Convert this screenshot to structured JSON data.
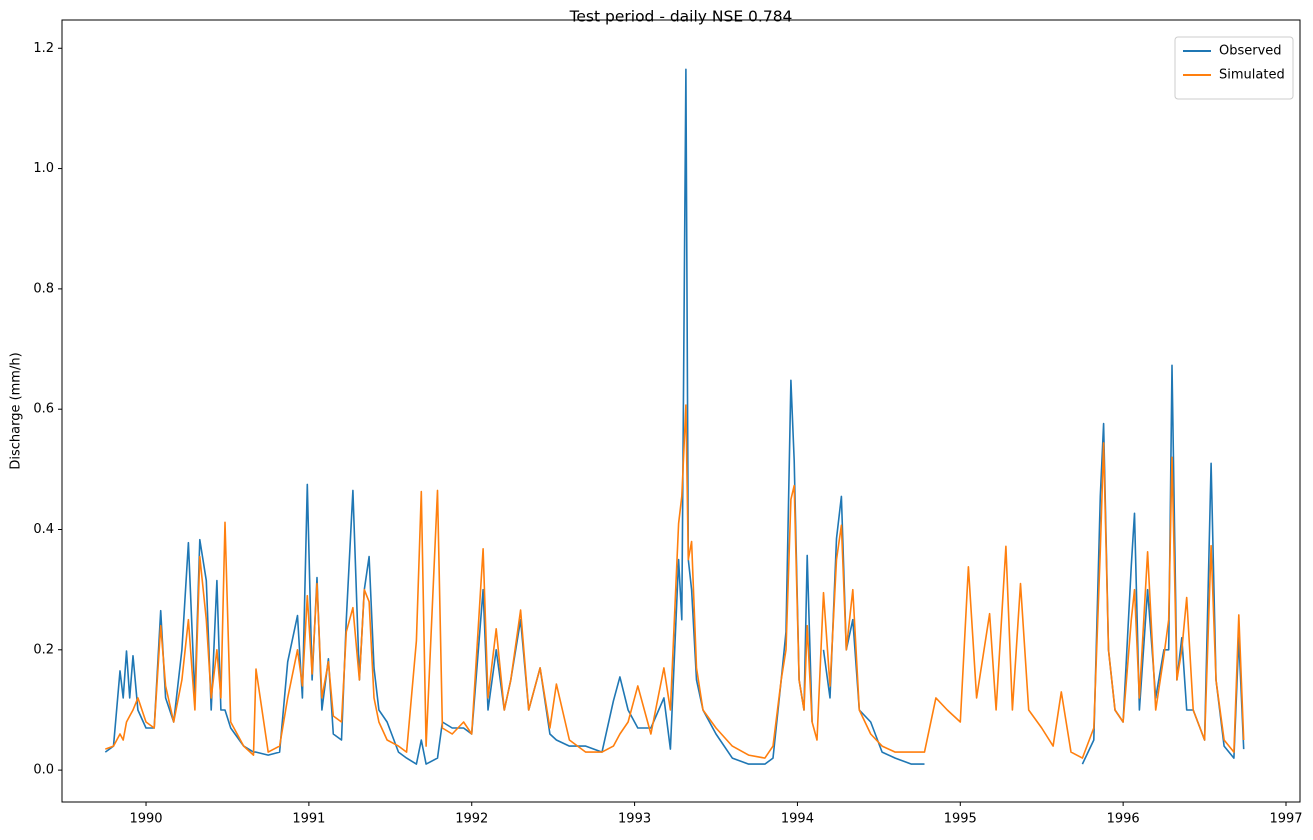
{
  "chart_data": {
    "type": "line",
    "title": "Test period - daily NSE 0.784",
    "ylabel": "Discharge (mm/h)",
    "x": [
      1989.75,
      1989.8,
      1989.84,
      1989.86,
      1989.88,
      1989.9,
      1989.92,
      1989.95,
      1990.0,
      1990.05,
      1990.09,
      1990.12,
      1990.17,
      1990.22,
      1990.26,
      1990.3,
      1990.33,
      1990.37,
      1990.4,
      1990.435,
      1990.46,
      1990.485,
      1990.52,
      1990.6,
      1990.66,
      1990.675,
      1990.75,
      1990.82,
      1990.87,
      1990.93,
      1990.96,
      1990.99,
      1991.02,
      1991.05,
      1991.08,
      1991.12,
      1991.15,
      1991.2,
      1991.23,
      1991.27,
      1991.31,
      1991.34,
      1991.37,
      1991.4,
      1991.43,
      1991.48,
      1991.55,
      1991.6,
      1991.66,
      1991.69,
      1991.72,
      1991.79,
      1991.82,
      1991.88,
      1991.95,
      1992.0,
      1992.07,
      1992.1,
      1992.15,
      1992.2,
      1992.24,
      1992.3,
      1992.35,
      1992.42,
      1992.48,
      1992.52,
      1992.6,
      1992.7,
      1992.8,
      1992.87,
      1992.91,
      1992.96,
      1993.02,
      1993.1,
      1993.18,
      1993.22,
      1993.27,
      1993.29,
      1993.315,
      1993.33,
      1993.35,
      1993.38,
      1993.42,
      1993.5,
      1993.6,
      1993.7,
      1993.8,
      1993.85,
      1993.9,
      1993.93,
      1993.96,
      1993.98,
      1994.01,
      1994.04,
      1994.06,
      1994.09,
      1994.12,
      1994.16,
      1994.2,
      1994.24,
      1994.27,
      1994.3,
      1994.34,
      1994.38,
      1994.45,
      1994.52,
      1994.6,
      1994.7,
      1994.78,
      1994.85,
      1994.92,
      1995.0,
      1995.05,
      1995.1,
      1995.18,
      1995.22,
      1995.28,
      1995.32,
      1995.37,
      1995.42,
      1995.5,
      1995.57,
      1995.62,
      1995.68,
      1995.75,
      1995.82,
      1995.86,
      1995.88,
      1995.91,
      1995.95,
      1996.0,
      1996.05,
      1996.07,
      1996.1,
      1996.15,
      1996.2,
      1996.25,
      1996.28,
      1996.3,
      1996.33,
      1996.36,
      1996.39,
      1996.43,
      1996.5,
      1996.54,
      1996.57,
      1996.62,
      1996.68,
      1996.71,
      1996.74
    ],
    "series": [
      {
        "name": "Observed",
        "color": "#1f77b4",
        "values": [
          0.03,
          0.04,
          0.165,
          0.12,
          0.198,
          0.12,
          0.19,
          0.1,
          0.07,
          0.07,
          0.265,
          0.12,
          0.08,
          0.2,
          0.378,
          0.12,
          0.383,
          0.315,
          0.1,
          0.315,
          0.1,
          0.1,
          0.07,
          0.04,
          0.03,
          0.03,
          0.025,
          0.03,
          0.18,
          0.257,
          0.12,
          0.475,
          0.15,
          0.32,
          0.1,
          0.185,
          0.06,
          0.05,
          0.25,
          0.465,
          0.15,
          0.3,
          0.355,
          0.17,
          0.1,
          0.08,
          0.03,
          0.02,
          0.01,
          0.05,
          0.01,
          0.02,
          0.08,
          0.07,
          0.07,
          0.06,
          0.3,
          0.1,
          0.2,
          0.1,
          0.15,
          0.25,
          0.1,
          0.17,
          0.06,
          0.05,
          0.04,
          0.04,
          0.03,
          0.115,
          0.155,
          0.1,
          0.07,
          0.07,
          0.12,
          0.035,
          0.35,
          0.25,
          1.165,
          0.35,
          0.3,
          0.15,
          0.1,
          0.06,
          0.02,
          0.01,
          0.01,
          0.02,
          0.15,
          0.23,
          0.648,
          0.514,
          0.15,
          0.1,
          0.357,
          0.08,
          null,
          0.2,
          0.12,
          0.385,
          0.455,
          0.2,
          0.25,
          0.1,
          0.08,
          0.03,
          0.02,
          0.01,
          0.01,
          null,
          null,
          null,
          null,
          null,
          null,
          null,
          null,
          null,
          null,
          null,
          null,
          null,
          null,
          null,
          0.01,
          0.05,
          0.455,
          0.576,
          0.2,
          0.1,
          0.08,
          0.34,
          0.427,
          0.1,
          0.3,
          0.12,
          0.2,
          0.2,
          0.673,
          0.15,
          0.22,
          0.1,
          0.1,
          0.05,
          0.51,
          0.15,
          0.04,
          0.02,
          0.22,
          0.035
        ]
      },
      {
        "name": "Simulated",
        "color": "#ff7f0e",
        "values": [
          0.035,
          0.04,
          0.06,
          0.05,
          0.08,
          0.09,
          0.1,
          0.12,
          0.08,
          0.07,
          0.24,
          0.14,
          0.08,
          0.15,
          0.25,
          0.1,
          0.355,
          0.25,
          0.12,
          0.2,
          0.12,
          0.412,
          0.08,
          0.04,
          0.025,
          0.168,
          0.03,
          0.04,
          0.12,
          0.2,
          0.14,
          0.29,
          0.16,
          0.31,
          0.12,
          0.18,
          0.09,
          0.08,
          0.23,
          0.27,
          0.15,
          0.3,
          0.28,
          0.12,
          0.08,
          0.05,
          0.04,
          0.03,
          0.215,
          0.463,
          0.04,
          0.465,
          0.07,
          0.06,
          0.08,
          0.06,
          0.368,
          0.12,
          0.235,
          0.1,
          0.15,
          0.266,
          0.1,
          0.17,
          0.07,
          0.143,
          0.05,
          0.03,
          0.03,
          0.04,
          0.06,
          0.08,
          0.14,
          0.06,
          0.17,
          0.1,
          0.41,
          0.455,
          0.607,
          0.35,
          0.38,
          0.17,
          0.1,
          0.07,
          0.04,
          0.025,
          0.02,
          0.04,
          0.15,
          0.2,
          0.45,
          0.473,
          0.15,
          0.1,
          0.24,
          0.08,
          0.05,
          0.295,
          0.14,
          0.35,
          0.407,
          0.2,
          0.3,
          0.1,
          0.06,
          0.04,
          0.03,
          0.03,
          0.03,
          0.12,
          0.1,
          0.08,
          0.338,
          0.12,
          0.26,
          0.1,
          0.372,
          0.1,
          0.31,
          0.1,
          0.07,
          0.04,
          0.13,
          0.03,
          0.02,
          0.07,
          0.365,
          0.544,
          0.2,
          0.1,
          0.08,
          0.25,
          0.3,
          0.12,
          0.363,
          0.1,
          0.19,
          0.25,
          0.52,
          0.15,
          0.2,
          0.287,
          0.1,
          0.05,
          0.373,
          0.15,
          0.05,
          0.03,
          0.258,
          0.05
        ]
      }
    ],
    "xlim": [
      1989.484,
      1997.086
    ],
    "xticks": [
      1990,
      1991,
      1992,
      1993,
      1994,
      1995,
      1996,
      1997
    ],
    "ylim": [
      -0.053,
      1.247
    ],
    "yticks": [
      {
        "value": 0,
        "label": "0.0"
      },
      0.2,
      0.4,
      0.6,
      0.8,
      {
        "value": 1,
        "label": "1.0"
      },
      1.2
    ],
    "grid": false,
    "legend": "upper right"
  }
}
